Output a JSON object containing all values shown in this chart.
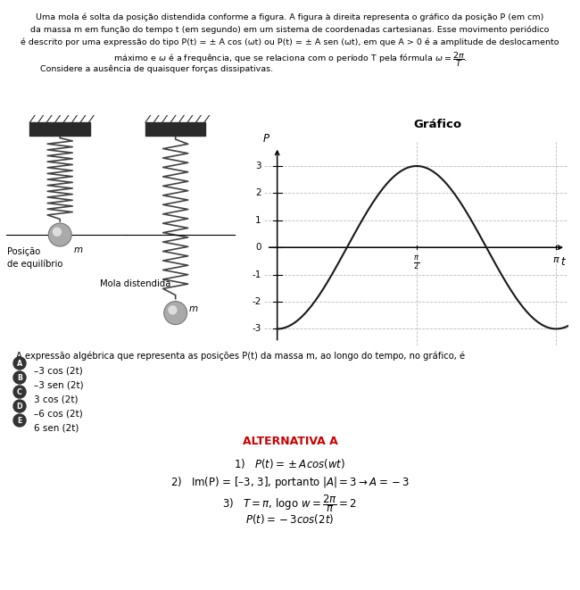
{
  "background_color": "#ffffff",
  "graph_title": "Gráfico",
  "amplitude": -3,
  "omega": 2,
  "graph_xlim": [
    -0.15,
    3.28
  ],
  "graph_ylim": [
    -3.6,
    3.9
  ],
  "graph_yticks": [
    -3,
    -2,
    -1,
    0,
    1,
    2,
    3
  ],
  "grid_color": "#bbbbbb",
  "curve_color": "#1a1a1a",
  "intro_line1": "Uma mola é solta da posição distendida conforme a figura. A figura à direita representa o gráfico da posição P (em cm)",
  "intro_line2": "da massa m em função do tempo t (em segundo) em um sistema de coordenadas cartesianas. Esse movimento periódico",
  "intro_line3": "é descrito por uma expressão do tipo P(t) = ± A cos (ωt) ou P(t) = ± A sen (ωt), em que A > 0 é a amplitude de deslocamento",
  "intro_line4": "máximo e ω é a frequência, que se relaciona com o período T pela fórmula ω =",
  "consider_text": "Considere a ausência de quaisquer forças dissipativas.",
  "question_text": "A expressão algébrica que representa as posições P(t) da massa m, ao longo do tempo, no gráfico, é",
  "options": [
    "–3 cos (2t)",
    "–3 sen (2t)",
    "3 cos (2t)",
    "–6 cos (2t)",
    "6 sen (2t)"
  ],
  "option_labels": [
    "A",
    "B",
    "C",
    "D",
    "E"
  ],
  "answer_title": "ALTERNATIVA A",
  "answer_color": "#cc0000",
  "dark_gray": "#333333",
  "medium_gray": "#888888",
  "light_gray": "#cccccc"
}
